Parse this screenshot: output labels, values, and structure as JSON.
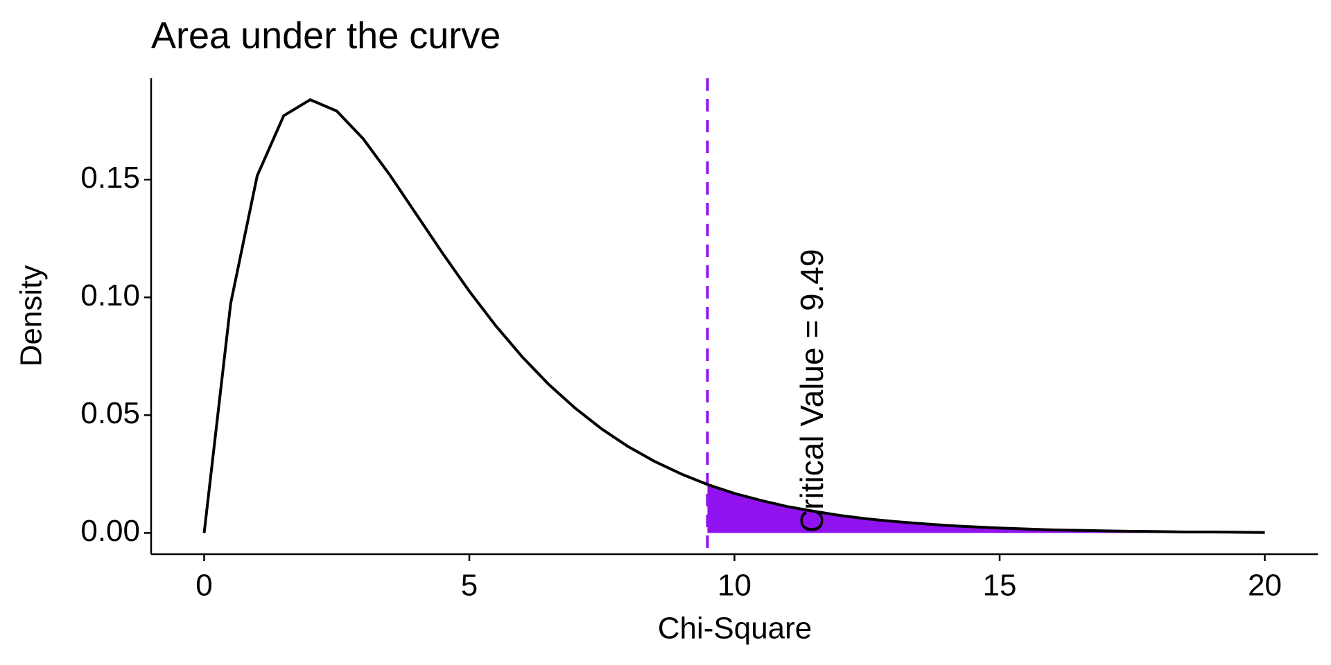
{
  "chart_data": {
    "type": "line",
    "title": "Area under the curve",
    "xlabel": "Chi-Square",
    "ylabel": "Density",
    "x": [
      0,
      0.5,
      1,
      1.5,
      2,
      2.5,
      3,
      3.5,
      4,
      4.5,
      5,
      5.5,
      6,
      6.5,
      7,
      7.5,
      8,
      8.5,
      9,
      9.5,
      10,
      10.5,
      11,
      11.5,
      12,
      12.5,
      13,
      13.5,
      14,
      14.5,
      15,
      15.5,
      16,
      16.5,
      17,
      17.5,
      18,
      18.5,
      19,
      19.5,
      20
    ],
    "values": [
      0,
      0.0974,
      0.1516,
      0.1771,
      0.1839,
      0.1791,
      0.1673,
      0.152,
      0.1353,
      0.1186,
      0.1026,
      0.0879,
      0.0747,
      0.063,
      0.0529,
      0.0441,
      0.0366,
      0.0303,
      0.025,
      0.0205,
      0.0168,
      0.0138,
      0.0112,
      0.0092,
      0.0074,
      0.006,
      0.0049,
      0.004,
      0.0032,
      0.0026,
      0.0021,
      0.0017,
      0.0013,
      0.0011,
      0.0009,
      0.0007,
      0.0006,
      0.0004,
      0.0004,
      0.0003,
      0.0002
    ],
    "color": "#000000",
    "shade": {
      "x": [
        9.49,
        10,
        10.5,
        11,
        11.5,
        12,
        12.5,
        13,
        13.5,
        14,
        14.5,
        15,
        15.5,
        16,
        16.5,
        17,
        17.5,
        18,
        18.5,
        19,
        19.5,
        20
      ],
      "values": [
        0.0206,
        0.0168,
        0.0138,
        0.0112,
        0.0092,
        0.0074,
        0.006,
        0.0049,
        0.004,
        0.0032,
        0.0026,
        0.0021,
        0.0017,
        0.0013,
        0.0011,
        0.0009,
        0.0007,
        0.0006,
        0.0004,
        0.0004,
        0.0003,
        0.0002
      ],
      "color": "#9012ee"
    },
    "critical_value": 9.49,
    "critical_color": "#9012ee",
    "annotation": "Critical Value = 9.49",
    "xlim": [
      -1,
      21
    ],
    "xticks": [
      0,
      5,
      10,
      15,
      20
    ],
    "ylim": [
      -0.009,
      0.193
    ],
    "yticks": [
      {
        "value": 0,
        "label": "0.00"
      },
      0.05,
      {
        "value": 0.1,
        "label": "0.10"
      },
      0.15
    ],
    "grid": false
  }
}
